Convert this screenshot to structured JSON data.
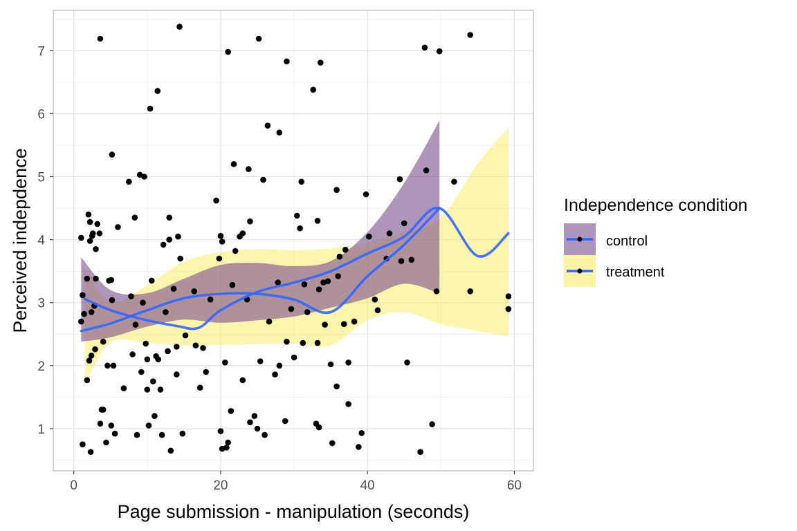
{
  "chart_data": {
    "type": "scatter",
    "title": "",
    "xlabel": "Page submission - manipulation (seconds)",
    "ylabel": "Perceived indepdence",
    "xlim": [
      -2.8,
      62.6
    ],
    "ylim": [
      0.33,
      7.64
    ],
    "x_ticks": [
      0,
      20,
      40,
      60
    ],
    "y_ticks": [
      1,
      2,
      3,
      4,
      5,
      6,
      7
    ],
    "grid": true,
    "legend": {
      "title": "Independence condition",
      "position": "right",
      "entries": [
        {
          "label": "control",
          "fill": "#7b4f8e"
        },
        {
          "label": "treatment",
          "fill": "#f9e94a"
        }
      ]
    },
    "colors": {
      "points": "#000000",
      "smooth_line": "#3366ff",
      "control_band": "#7b4f8e",
      "treatment_band": "#f9e94a"
    },
    "points": [
      [
        1.0,
        4.03
      ],
      [
        1.2,
        3.12
      ],
      [
        1.4,
        2.82
      ],
      [
        1.0,
        2.7
      ],
      [
        1.2,
        0.75
      ],
      [
        1.8,
        3.38
      ],
      [
        2.0,
        4.4
      ],
      [
        2.2,
        4.28
      ],
      [
        2.5,
        4.06
      ],
      [
        2.2,
        3.98
      ],
      [
        2.6,
        4.1
      ],
      [
        3.0,
        3.85
      ],
      [
        2.4,
        2.85
      ],
      [
        2.8,
        2.95
      ],
      [
        2.1,
        2.08
      ],
      [
        2.4,
        2.16
      ],
      [
        2.9,
        2.26
      ],
      [
        1.8,
        1.77
      ],
      [
        2.3,
        0.63
      ],
      [
        3.0,
        3.38
      ],
      [
        3.2,
        4.25
      ],
      [
        3.5,
        4.1
      ],
      [
        3.6,
        7.19
      ],
      [
        3.8,
        1.3
      ],
      [
        4.0,
        1.3
      ],
      [
        3.6,
        1.08
      ],
      [
        4.4,
        0.78
      ],
      [
        4.0,
        2.38
      ],
      [
        4.6,
        2.0
      ],
      [
        4.8,
        3.35
      ],
      [
        5.1,
        3.36
      ],
      [
        5.2,
        3.04
      ],
      [
        5.2,
        5.35
      ],
      [
        5.4,
        2.0
      ],
      [
        5.1,
        1.05
      ],
      [
        5.6,
        0.92
      ],
      [
        6.0,
        4.2
      ],
      [
        6.8,
        1.64
      ],
      [
        7.5,
        4.92
      ],
      [
        7.8,
        3.1
      ],
      [
        8.0,
        2.18
      ],
      [
        8.3,
        4.35
      ],
      [
        8.4,
        2.65
      ],
      [
        8.6,
        0.9
      ],
      [
        9.0,
        5.03
      ],
      [
        9.2,
        1.9
      ],
      [
        9.4,
        3.0
      ],
      [
        9.6,
        5.0
      ],
      [
        9.8,
        2.35
      ],
      [
        10.0,
        2.1
      ],
      [
        10.0,
        1.62
      ],
      [
        10.2,
        1.05
      ],
      [
        10.4,
        6.08
      ],
      [
        10.6,
        3.35
      ],
      [
        10.8,
        1.75
      ],
      [
        11.0,
        1.2
      ],
      [
        11.2,
        2.15
      ],
      [
        11.4,
        6.36
      ],
      [
        11.5,
        2.1
      ],
      [
        11.8,
        1.62
      ],
      [
        12.0,
        0.9
      ],
      [
        12.2,
        3.92
      ],
      [
        12.5,
        2.85
      ],
      [
        12.8,
        2.23
      ],
      [
        13.0,
        4.35
      ],
      [
        13.0,
        4.0
      ],
      [
        13.2,
        0.65
      ],
      [
        13.6,
        3.22
      ],
      [
        14.0,
        2.3
      ],
      [
        14.0,
        1.86
      ],
      [
        14.2,
        4.05
      ],
      [
        14.5,
        3.7
      ],
      [
        14.4,
        7.38
      ],
      [
        14.8,
        0.92
      ],
      [
        15.2,
        2.48
      ],
      [
        16.4,
        3.18
      ],
      [
        16.6,
        2.32
      ],
      [
        17.2,
        1.65
      ],
      [
        17.6,
        2.28
      ],
      [
        18.0,
        1.9
      ],
      [
        18.6,
        3.05
      ],
      [
        19.4,
        4.62
      ],
      [
        19.8,
        3.7
      ],
      [
        20.0,
        4.06
      ],
      [
        20.2,
        3.97
      ],
      [
        20.0,
        0.96
      ],
      [
        20.2,
        0.68
      ],
      [
        20.8,
        0.7
      ],
      [
        20.6,
        2.05
      ],
      [
        21.0,
        6.98
      ],
      [
        21.0,
        0.78
      ],
      [
        21.4,
        1.28
      ],
      [
        21.6,
        3.28
      ],
      [
        21.8,
        5.2
      ],
      [
        22.0,
        3.82
      ],
      [
        22.6,
        4.05
      ],
      [
        23.0,
        1.77
      ],
      [
        23.0,
        4.1
      ],
      [
        23.6,
        3.05
      ],
      [
        23.8,
        5.12
      ],
      [
        24.0,
        4.29
      ],
      [
        24.0,
        1.1
      ],
      [
        24.6,
        1.2
      ],
      [
        25.0,
        1.0
      ],
      [
        25.2,
        7.19
      ],
      [
        25.4,
        2.07
      ],
      [
        25.8,
        4.95
      ],
      [
        26.0,
        0.9
      ],
      [
        26.4,
        5.81
      ],
      [
        26.6,
        2.7
      ],
      [
        27.4,
        1.86
      ],
      [
        27.8,
        3.32
      ],
      [
        28.0,
        5.7
      ],
      [
        28.0,
        2.0
      ],
      [
        28.8,
        1.12
      ],
      [
        29.0,
        6.83
      ],
      [
        29.0,
        2.38
      ],
      [
        29.6,
        2.9
      ],
      [
        30.0,
        2.13
      ],
      [
        30.4,
        4.38
      ],
      [
        30.8,
        4.18
      ],
      [
        31.0,
        4.92
      ],
      [
        31.2,
        2.36
      ],
      [
        31.4,
        3.29
      ],
      [
        31.8,
        2.85
      ],
      [
        32.6,
        6.38
      ],
      [
        33.0,
        1.08
      ],
      [
        33.2,
        4.3
      ],
      [
        33.4,
        1.02
      ],
      [
        33.4,
        3.21
      ],
      [
        33.6,
        6.81
      ],
      [
        33.2,
        2.36
      ],
      [
        34.0,
        3.32
      ],
      [
        34.2,
        2.65
      ],
      [
        34.6,
        3.34
      ],
      [
        35.0,
        2.02
      ],
      [
        35.2,
        0.77
      ],
      [
        35.8,
        4.79
      ],
      [
        35.8,
        1.67
      ],
      [
        36.0,
        3.42
      ],
      [
        36.2,
        3.73
      ],
      [
        36.8,
        2.66
      ],
      [
        37.0,
        3.84
      ],
      [
        37.4,
        1.39
      ],
      [
        37.4,
        2.05
      ],
      [
        38.2,
        2.7
      ],
      [
        38.8,
        0.71
      ],
      [
        39.2,
        0.93
      ],
      [
        39.8,
        4.72
      ],
      [
        40.2,
        4.05
      ],
      [
        41.0,
        3.05
      ],
      [
        41.4,
        2.88
      ],
      [
        42.6,
        3.7
      ],
      [
        43.0,
        4.1
      ],
      [
        44.4,
        4.96
      ],
      [
        44.6,
        3.66
      ],
      [
        45.0,
        4.26
      ],
      [
        45.4,
        2.05
      ],
      [
        46.0,
        3.68
      ],
      [
        47.2,
        0.63
      ],
      [
        47.8,
        7.05
      ],
      [
        48.0,
        5.1
      ],
      [
        48.8,
        1.07
      ],
      [
        49.4,
        3.18
      ],
      [
        49.8,
        6.99
      ],
      [
        51.8,
        4.92
      ],
      [
        54.0,
        7.25
      ],
      [
        54.0,
        3.18
      ],
      [
        59.2,
        2.9
      ],
      [
        59.2,
        3.1
      ]
    ],
    "series": [
      {
        "name": "control",
        "smooth": [
          [
            1.0,
            2.55
          ],
          [
            5.0,
            2.67
          ],
          [
            10.0,
            2.88
          ],
          [
            15.0,
            3.07
          ],
          [
            20.0,
            3.14
          ],
          [
            25.0,
            3.14
          ],
          [
            30.0,
            3.05
          ],
          [
            35.0,
            2.85
          ],
          [
            40.0,
            3.42
          ],
          [
            45.0,
            3.92
          ],
          [
            49.8,
            4.5
          ]
        ],
        "lower": [
          [
            1.0,
            2.38
          ],
          [
            5.0,
            2.45
          ],
          [
            10.0,
            2.62
          ],
          [
            15.0,
            2.73
          ],
          [
            20.0,
            2.68
          ],
          [
            25.0,
            2.72
          ],
          [
            30.0,
            2.78
          ],
          [
            35.0,
            2.92
          ],
          [
            40.0,
            3.07
          ],
          [
            45.0,
            3.3
          ],
          [
            49.8,
            3.15
          ]
        ],
        "upper": [
          [
            1.0,
            3.72
          ],
          [
            5.0,
            3.2
          ],
          [
            10.0,
            3.15
          ],
          [
            15.0,
            3.38
          ],
          [
            20.0,
            3.6
          ],
          [
            25.0,
            3.63
          ],
          [
            30.0,
            3.58
          ],
          [
            35.0,
            3.66
          ],
          [
            40.0,
            4.12
          ],
          [
            45.0,
            4.9
          ],
          [
            49.8,
            5.89
          ]
        ]
      },
      {
        "name": "treatment",
        "smooth": [
          [
            1.5,
            3.06
          ],
          [
            5.0,
            2.88
          ],
          [
            10.0,
            2.72
          ],
          [
            14.0,
            2.63
          ],
          [
            17.0,
            2.6
          ],
          [
            20.0,
            2.88
          ],
          [
            25.0,
            3.17
          ],
          [
            30.0,
            3.32
          ],
          [
            35.0,
            3.5
          ],
          [
            40.0,
            3.78
          ],
          [
            45.0,
            4.05
          ],
          [
            49.8,
            4.5
          ],
          [
            55.0,
            3.74
          ],
          [
            59.2,
            4.1
          ]
        ],
        "lower": [
          [
            1.5,
            1.7
          ],
          [
            5.0,
            2.37
          ],
          [
            10.0,
            2.36
          ],
          [
            15.0,
            2.32
          ],
          [
            20.0,
            2.33
          ],
          [
            25.0,
            2.34
          ],
          [
            30.0,
            2.35
          ],
          [
            35.0,
            2.32
          ],
          [
            40.0,
            2.72
          ],
          [
            45.0,
            2.85
          ],
          [
            50.0,
            2.66
          ],
          [
            55.0,
            2.55
          ],
          [
            59.2,
            2.46
          ]
        ],
        "upper": [
          [
            1.5,
            3.55
          ],
          [
            5.0,
            3.0
          ],
          [
            10.0,
            3.28
          ],
          [
            15.0,
            3.65
          ],
          [
            20.0,
            3.8
          ],
          [
            25.0,
            3.85
          ],
          [
            30.0,
            3.83
          ],
          [
            35.0,
            3.86
          ],
          [
            40.0,
            3.95
          ],
          [
            45.0,
            4.12
          ],
          [
            50.0,
            4.35
          ],
          [
            55.0,
            5.2
          ],
          [
            59.2,
            5.78
          ]
        ]
      }
    ]
  }
}
